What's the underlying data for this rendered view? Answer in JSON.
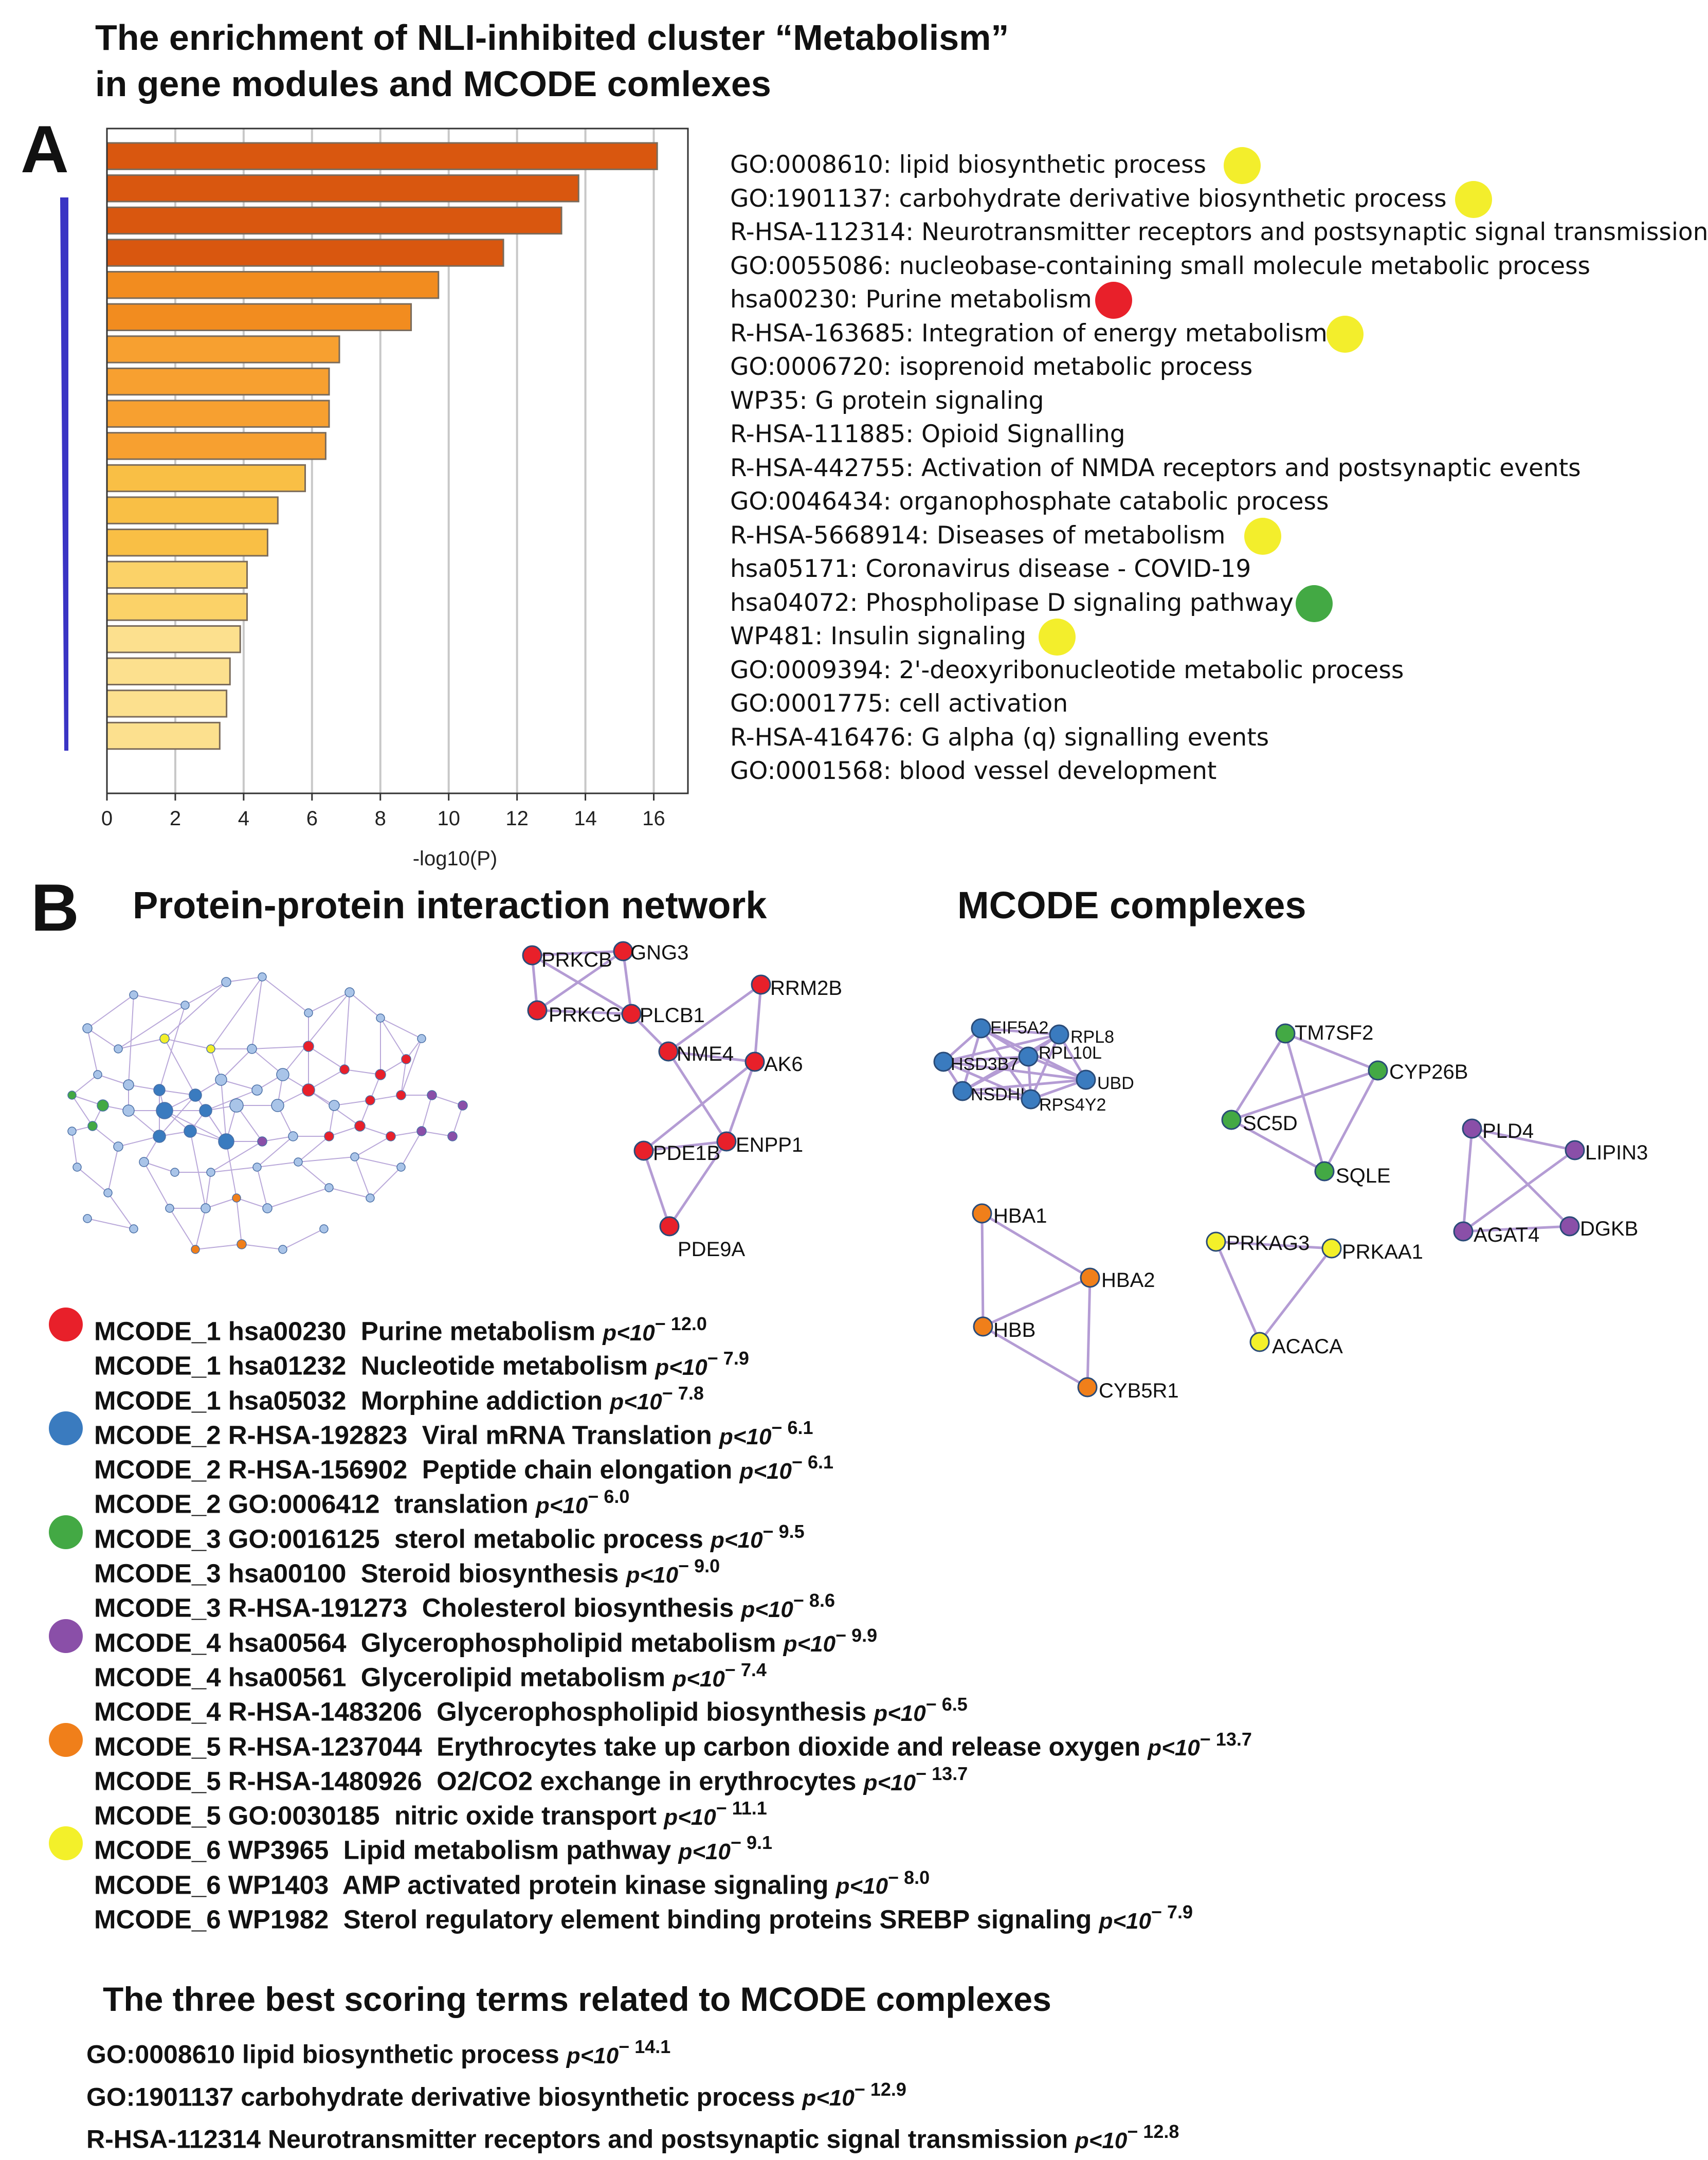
{
  "title_lines": [
    "The enrichment of NLI-inhibited cluster “Metabolism”",
    "in gene modules and MCODE comlexes"
  ],
  "panel_a_label": "A",
  "panel_b_label": "B",
  "chart_data": {
    "type": "bar",
    "orientation": "horizontal",
    "xlabel": "-log10(P)",
    "xlim": [
      0,
      17
    ],
    "xticks": [
      "0",
      "2",
      "4",
      "6",
      "8",
      "10",
      "12",
      "14",
      "16"
    ],
    "grid": "vertical",
    "categories": [
      "GO:0008610: lipid biosynthetic process",
      "GO:1901137: carbohydrate derivative biosynthetic process",
      "R-HSA-112314: Neurotransmitter receptors and postsynaptic signal transmission",
      "GO:0055086: nucleobase-containing small molecule metabolic process",
      "hsa00230: Purine metabolism",
      "R-HSA-163685: Integration of energy metabolism",
      "GO:0006720: isoprenoid metabolic process",
      "WP35: G protein signaling",
      "R-HSA-111885: Opioid Signalling",
      "R-HSA-442755: Activation of NMDA receptors and postsynaptic events",
      "GO:0046434: organophosphate catabolic process",
      "R-HSA-5668914: Diseases of metabolism",
      "hsa05171: Coronavirus disease - COVID-19",
      "hsa04072: Phospholipase D signaling pathway",
      "WP481: Insulin signaling",
      "GO:0009394: 2'-deoxyribonucleotide metabolic process",
      "GO:0001775: cell activation",
      "R-HSA-416476: G alpha (q) signalling events",
      "GO:0001568: blood vessel development"
    ],
    "values": [
      16.1,
      13.8,
      13.3,
      11.6,
      9.7,
      8.9,
      6.8,
      6.5,
      6.5,
      6.4,
      5.8,
      5.0,
      4.7,
      4.1,
      4.1,
      3.9,
      3.6,
      3.5,
      3.3
    ],
    "bar_colors": [
      "#d9570f",
      "#d9570f",
      "#d9570f",
      "#d9570f",
      "#f28c1f",
      "#f28c1f",
      "#f7a030",
      "#f7a030",
      "#f7a030",
      "#f7a030",
      "#f9bf45",
      "#f9bf45",
      "#f9bf45",
      "#fbd268",
      "#fbd268",
      "#fce08e",
      "#fce08e",
      "#fce08e",
      "#fce08e"
    ],
    "term_markers": {
      "0": "#f3ee2c",
      "1": "#f3ee2c",
      "4": "#e8202a",
      "5": "#f3ee2c",
      "11": "#f3ee2c",
      "13": "#43a944",
      "14": "#f3ee2c"
    }
  },
  "section_headers": {
    "ppi": "Protein-protein interaction network",
    "mcode": "MCODE complexes"
  },
  "colors": {
    "mcode_1": "#e8202a",
    "mcode_2": "#3a7bbf",
    "mcode_3": "#43a944",
    "mcode_4": "#8a4fa8",
    "mcode_5": "#f07f1a",
    "mcode_6": "#f3f02a",
    "other_node": "#a9c4e8",
    "edge": "#b49cd4",
    "arrow": "#3a34c4"
  },
  "complexes": {
    "mcode_1": {
      "nodes": [
        "PRKCB",
        "GNG3",
        "PRKCG",
        "PLCB1",
        "RRM2B",
        "NME4",
        "AK6",
        "PDE1B",
        "ENPP1",
        "PDE9A"
      ]
    },
    "mcode_2": {
      "nodes": [
        "EIF5A2",
        "RPL8",
        "HSD3B7",
        "RPL10L",
        "UBD",
        "NSDHL",
        "RPS4Y2"
      ]
    },
    "mcode_3": {
      "nodes": [
        "TM7SF2",
        "CYP26B",
        "SC5D",
        "SQLE"
      ]
    },
    "mcode_4": {
      "nodes": [
        "PLD4",
        "LIPIN3",
        "AGAT4",
        "DGKB"
      ]
    },
    "mcode_5": {
      "nodes": [
        "HBA1",
        "HBA2",
        "HBB",
        "CYB5R1"
      ]
    },
    "mcode_6": {
      "nodes": [
        "PRKAG3",
        "PRKAA1",
        "ACACA"
      ]
    }
  },
  "mcode_terms": [
    {
      "module": "MCODE_1",
      "id": "hsa00230",
      "name": "Purine metabolism",
      "p_prefix": "p<10",
      "exp": "− 12.0",
      "dot": "mcode_1"
    },
    {
      "module": "MCODE_1",
      "id": "hsa01232",
      "name": "Nucleotide metabolism",
      "p_prefix": "p<10",
      "exp": "− 7.9"
    },
    {
      "module": "MCODE_1",
      "id": "hsa05032",
      "name": "Morphine addiction",
      "p_prefix": "p<10",
      "exp": "− 7.8"
    },
    {
      "module": "MCODE_2",
      "id": "R-HSA-192823",
      "name": "Viral mRNA Translation",
      "p_prefix": "p<10",
      "exp": "− 6.1",
      "dot": "mcode_2"
    },
    {
      "module": "MCODE_2",
      "id": "R-HSA-156902",
      "name": "Peptide chain elongation",
      "p_prefix": "p<10",
      "exp": "− 6.1"
    },
    {
      "module": "MCODE_2",
      "id": "GO:0006412",
      "name": "translation",
      "p_prefix": "p<10",
      "exp": "− 6.0"
    },
    {
      "module": "MCODE_3",
      "id": "GO:0016125",
      "name": "sterol metabolic process",
      "p_prefix": "p<10",
      "exp": "− 9.5",
      "dot": "mcode_3"
    },
    {
      "module": "MCODE_3",
      "id": "hsa00100",
      "name": "Steroid biosynthesis",
      "p_prefix": "p<10",
      "exp": "− 9.0"
    },
    {
      "module": "MCODE_3",
      "id": "R-HSA-191273",
      "name": "Cholesterol biosynthesis",
      "p_prefix": "p<10",
      "exp": "− 8.6"
    },
    {
      "module": "MCODE_4",
      "id": "hsa00564",
      "name": "Glycerophospholipid metabolism",
      "p_prefix": "p<10",
      "exp": "− 9.9",
      "dot": "mcode_4"
    },
    {
      "module": "MCODE_4",
      "id": "hsa00561",
      "name": "Glycerolipid metabolism",
      "p_prefix": "p<10",
      "exp": "− 7.4"
    },
    {
      "module": "MCODE_4",
      "id": "R-HSA-1483206",
      "name": "Glycerophospholipid biosynthesis",
      "p_prefix": "p<10",
      "exp": "− 6.5"
    },
    {
      "module": "MCODE_5",
      "id": "R-HSA-1237044",
      "name": "Erythrocytes take up carbon dioxide and release oxygen",
      "p_prefix": "p<10",
      "exp": "− 13.7",
      "dot": "mcode_5"
    },
    {
      "module": "MCODE_5",
      "id": "R-HSA-1480926",
      "name": "O2/CO2 exchange in erythrocytes",
      "p_prefix": "p<10",
      "exp": "− 13.7"
    },
    {
      "module": "MCODE_5",
      "id": "GO:0030185",
      "name": "nitric oxide transport",
      "p_prefix": "p<10",
      "exp": "− 11.1"
    },
    {
      "module": "MCODE_6",
      "id": "WP3965",
      "name": "Lipid metabolism pathway",
      "p_prefix": "p<10",
      "exp": "− 9.1",
      "dot": "mcode_6"
    },
    {
      "module": "MCODE_6",
      "id": "WP1403",
      "name": "AMP activated protein kinase signaling",
      "p_prefix": "p<10",
      "exp": "− 8.0"
    },
    {
      "module": "MCODE_6",
      "id": "WP1982",
      "name": "Sterol regulatory element binding proteins SREBP signaling",
      "p_prefix": "p<10",
      "exp": "− 7.9"
    }
  ],
  "best_terms_header": "The three best scoring terms related to MCODE complexes",
  "best_terms": [
    {
      "id": "GO:0008610",
      "name": "lipid biosynthetic process",
      "p_prefix": "p<10",
      "exp": "− 14.1"
    },
    {
      "id": "GO:1901137",
      "name": "carbohydrate derivative biosynthetic process",
      "p_prefix": "p<10",
      "exp": "− 12.9"
    },
    {
      "id": "R-HSA-112314",
      "name": "Neurotransmitter receptors and postsynaptic signal transmission",
      "p_prefix": "p<10",
      "exp": "− 12.8"
    }
  ]
}
